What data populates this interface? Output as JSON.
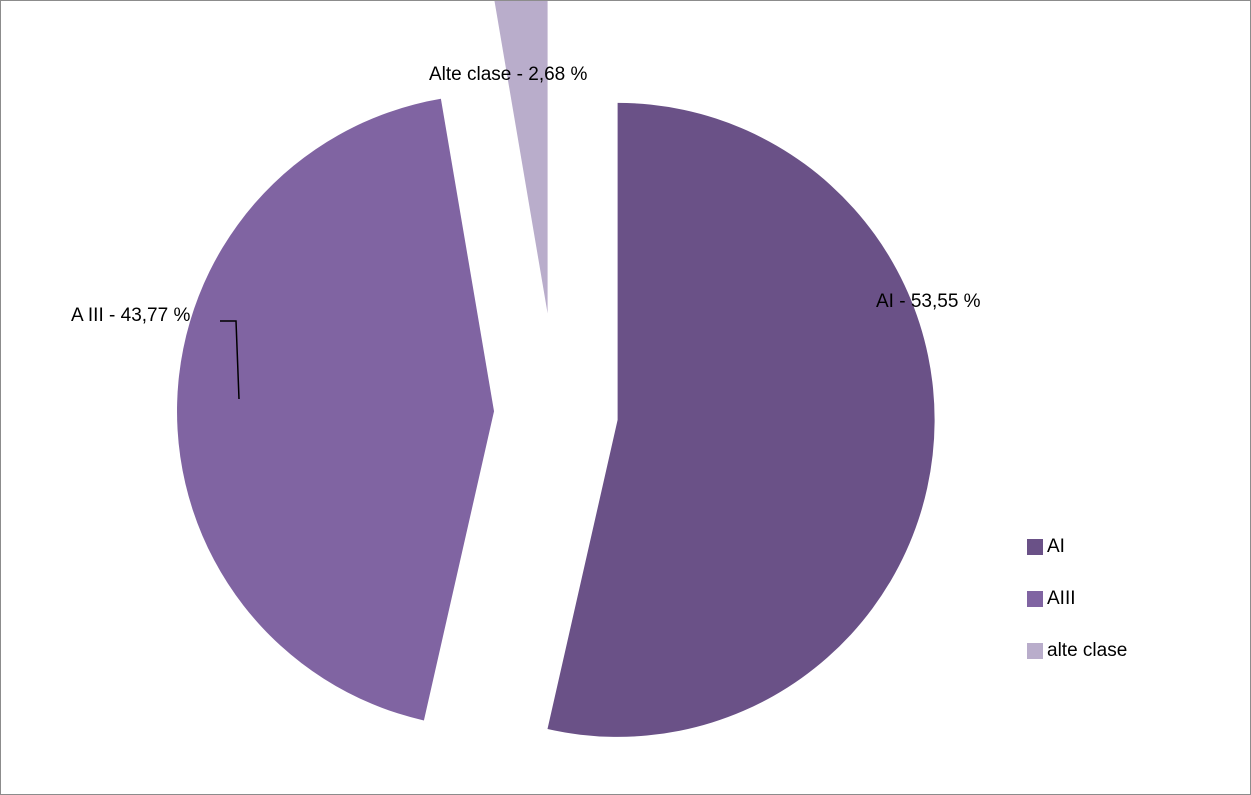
{
  "chart_data": {
    "type": "pie",
    "categories": [
      "AI",
      "AIII",
      "alte clase"
    ],
    "values": [
      53.55,
      43.77,
      2.68
    ],
    "colors": [
      "#6A5187",
      "#8064A2",
      "#B9ADCB"
    ],
    "exploded": true,
    "data_labels": [
      "AI - 53,55 %",
      "A III - 43,77 %",
      "Alte clase - 2,68 %"
    ],
    "legend": {
      "position": "right",
      "entries": [
        "AI",
        "AIII",
        "alte clase"
      ]
    }
  }
}
